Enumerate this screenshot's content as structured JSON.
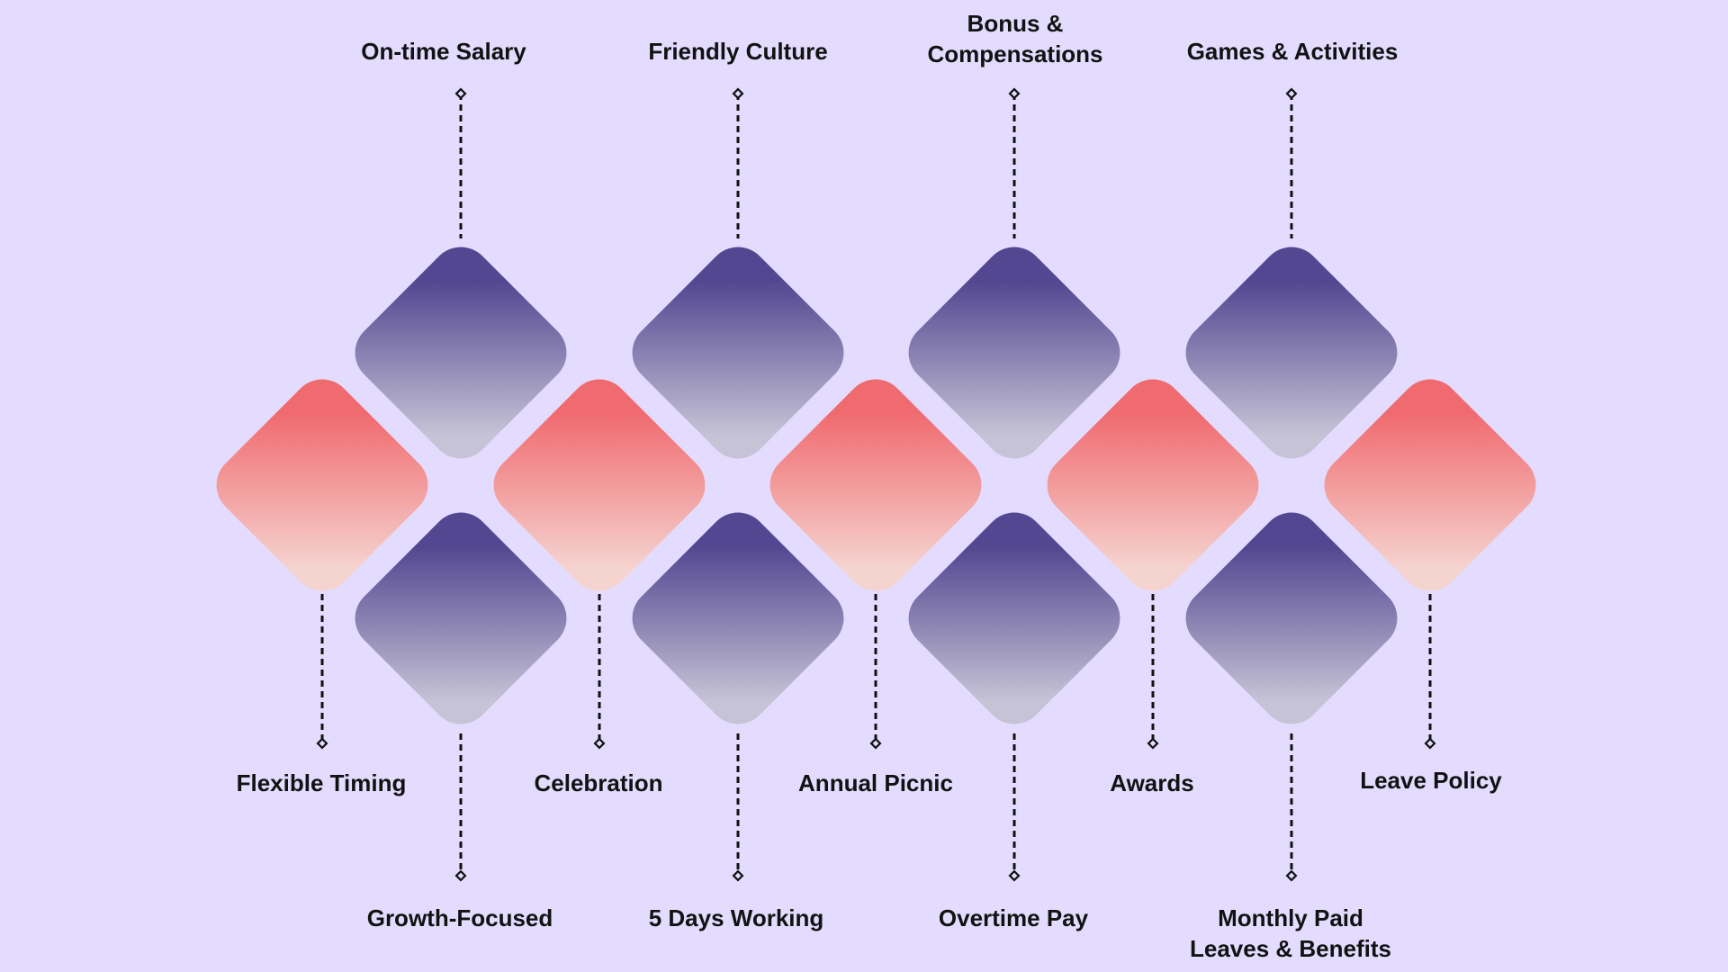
{
  "colors": {
    "background": "#e3dcfe",
    "purple_top": "#534791",
    "purple_bottom": "#c6c3d6",
    "pink_top": "#f06b70",
    "pink_bottom": "#f5d3cf",
    "line": "#111111"
  },
  "items_top": [
    "On-time Salary",
    "Friendly Culture",
    "Bonus &\nCompensations",
    "Games & Activities"
  ],
  "items_middle": [
    "Flexible Timing",
    "Celebration",
    "Annual Picnic",
    "Awards",
    "Leave Policy"
  ],
  "items_bottom": [
    "Growth-Focused",
    "5 Days Working",
    "Overtime Pay",
    "Monthly Paid\nLeaves & Benefits"
  ]
}
